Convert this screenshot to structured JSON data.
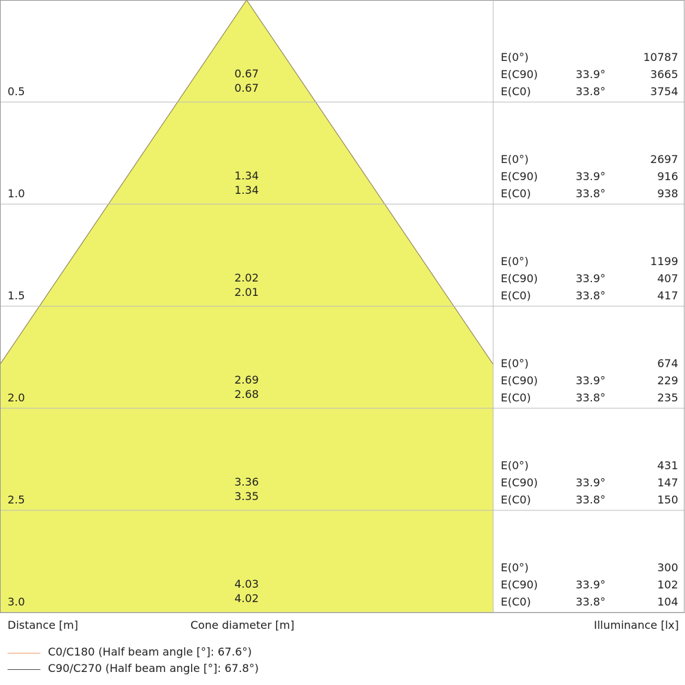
{
  "chart_data": {
    "type": "cone-diagram",
    "distance_label": "Distance [m]",
    "diameter_label": "Cone diameter [m]",
    "illuminance_label": "Illuminance [lx]",
    "cone_color": "#eef26b",
    "rows": [
      {
        "distance": "0.5",
        "d": 0.5,
        "dia_c90": "0.67",
        "dia_c0": "0.67",
        "e0": "10787",
        "ang_c90": "33.9°",
        "e_c90": "3665",
        "ang_c0": "33.8°",
        "e_c0": "3754"
      },
      {
        "distance": "1.0",
        "d": 1.0,
        "dia_c90": "1.34",
        "dia_c0": "1.34",
        "e0": "2697",
        "ang_c90": "33.9°",
        "e_c90": "916",
        "ang_c0": "33.8°",
        "e_c0": "938"
      },
      {
        "distance": "1.5",
        "d": 1.5,
        "dia_c90": "2.02",
        "dia_c0": "2.01",
        "e0": "1199",
        "ang_c90": "33.9°",
        "e_c90": "407",
        "ang_c0": "33.8°",
        "e_c0": "417"
      },
      {
        "distance": "2.0",
        "d": 2.0,
        "dia_c90": "2.69",
        "dia_c0": "2.68",
        "e0": "674",
        "ang_c90": "33.9°",
        "e_c90": "229",
        "ang_c0": "33.8°",
        "e_c0": "235"
      },
      {
        "distance": "2.5",
        "d": 2.5,
        "dia_c90": "3.36",
        "dia_c0": "3.35",
        "e0": "431",
        "ang_c90": "33.9°",
        "e_c90": "147",
        "ang_c0": "33.8°",
        "e_c0": "150"
      },
      {
        "distance": "3.0",
        "d": 3.0,
        "dia_c90": "4.03",
        "dia_c0": "4.02",
        "e0": "300",
        "ang_c90": "33.9°",
        "e_c90": "102",
        "ang_c0": "33.8°",
        "e_c0": "104"
      }
    ],
    "row_labels": {
      "e0": "E(0°)",
      "e_c90": "E(C90)",
      "e_c0": "E(C0)"
    },
    "legend": [
      {
        "label": "C0/C180 (Half beam angle [°]: 67.6°)",
        "color": "#f4a070"
      },
      {
        "label": "C90/C270 (Half beam angle [°]: 67.8°)",
        "color": "#555555"
      }
    ]
  }
}
